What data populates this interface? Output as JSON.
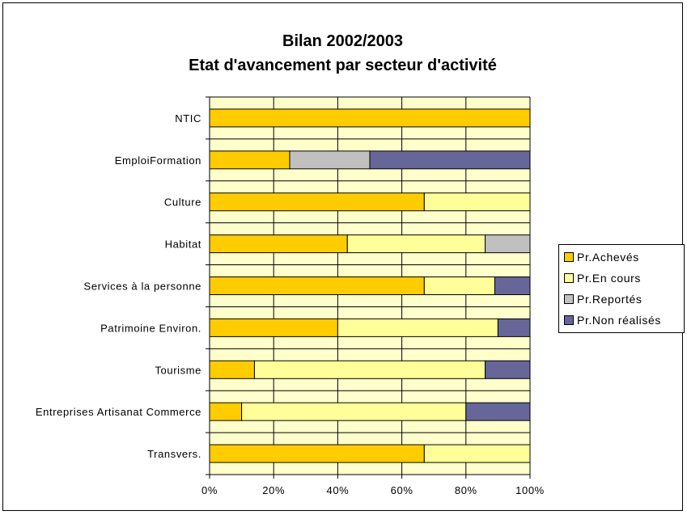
{
  "chart_data": {
    "type": "bar",
    "orientation": "horizontal",
    "stacked": true,
    "title": "Bilan 2002/2003",
    "subtitle": "Etat d'avancement par secteur d'activité",
    "categories": [
      "NTIC",
      "EmploiFormation",
      "Culture",
      "Habitat",
      "Services  à la personne",
      "Patrimoine Environ.",
      "Tourisme",
      "Entreprises Artisanat Commerce",
      "Transvers."
    ],
    "series": [
      {
        "name": "Pr.Achevés",
        "color": "#ffcc00",
        "values": [
          100,
          25,
          67,
          43,
          67,
          40,
          14,
          10,
          67
        ]
      },
      {
        "name": "Pr.En cours",
        "color": "#ffff99",
        "values": [
          0,
          0,
          33,
          43,
          22,
          50,
          72,
          70,
          33
        ]
      },
      {
        "name": "Pr.Reportés",
        "color": "#c0c0c0",
        "values": [
          0,
          25,
          0,
          14,
          0,
          0,
          0,
          0,
          0
        ]
      },
      {
        "name": "Pr.Non réalisés",
        "color": "#666699",
        "values": [
          0,
          50,
          0,
          0,
          11,
          10,
          14,
          20,
          0
        ]
      }
    ],
    "x_ticks": [
      "0%",
      "20%",
      "40%",
      "60%",
      "80%",
      "100%"
    ],
    "xlim": [
      0,
      100
    ],
    "grid": true,
    "plot_background": "#ffffcc",
    "legend_position": "right"
  }
}
